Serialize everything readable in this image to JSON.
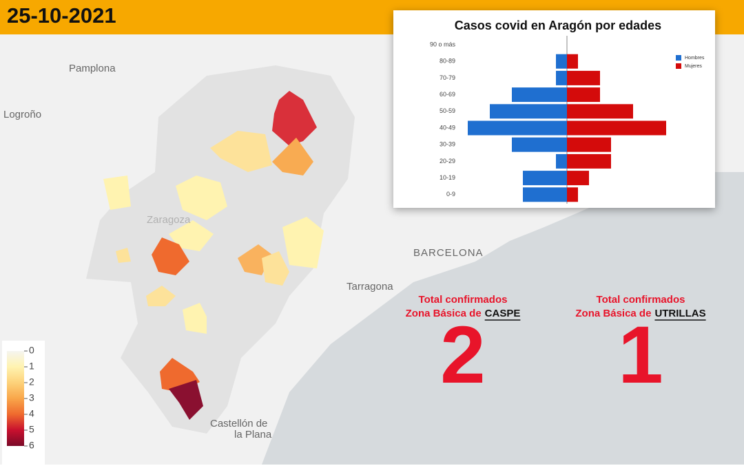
{
  "header": {
    "date": "25-10-2021"
  },
  "map": {
    "cities": [
      "Pamplona",
      "Logroño",
      "Zaragoza",
      "BARCELONA",
      "Tarragona",
      "Castellón de",
      "la Plana"
    ],
    "legend": {
      "ticks": [
        0,
        1,
        2,
        3,
        4,
        5,
        6
      ],
      "colors": [
        "#f5f5f0",
        "#fff3b0",
        "#fdd27a",
        "#f9a64a",
        "#ef6a2e",
        "#c8102e",
        "#7a0a28"
      ]
    }
  },
  "chart_data": {
    "type": "pyramid",
    "title": "Casos covid en Aragón por edades",
    "categories": [
      "90 o más",
      "80-89",
      "70-79",
      "60-69",
      "50-59",
      "40-49",
      "30-39",
      "20-29",
      "10-19",
      "0-9"
    ],
    "series": [
      {
        "name": "Hombres",
        "color": "#1f6fd0",
        "values": [
          0,
          1,
          1,
          5,
          7,
          9,
          5,
          1,
          4,
          4
        ]
      },
      {
        "name": "Mujeres",
        "color": "#d40b0b",
        "values": [
          0,
          1,
          3,
          3,
          6,
          9,
          4,
          4,
          2,
          1
        ]
      }
    ]
  },
  "stats": [
    {
      "label": "Total confirmados",
      "prefix": "Zona Básica de",
      "zone": "CASPE",
      "value": 2
    },
    {
      "label": "Total confirmados",
      "prefix": "Zona Básica de",
      "zone": "UTRILLAS",
      "value": 1
    }
  ]
}
